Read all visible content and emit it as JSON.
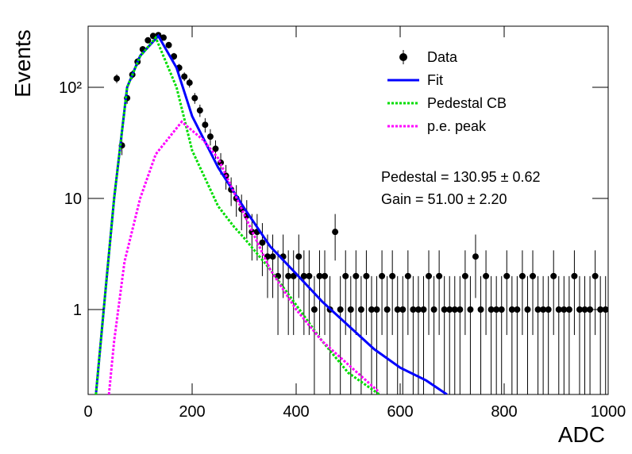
{
  "chart_data": {
    "type": "histfit",
    "xlabel": "ADC",
    "ylabel": "Events",
    "xlim": [
      0,
      1000
    ],
    "xticks": [
      0,
      200,
      400,
      600,
      800,
      1000
    ],
    "ylim": [
      0.172,
      355
    ],
    "ylog": true,
    "yticks": [
      1,
      10,
      {
        "value": 100,
        "label": "10²"
      }
    ],
    "legend": "top-right",
    "annotations": [
      "Pedestal = 130.95 ± 0.62",
      "Gain = 51.00 ± 2.20"
    ],
    "series": [
      {
        "name": "Data",
        "style": "markers",
        "color": "#000000",
        "x": [
          55,
          65,
          75,
          85,
          95,
          105,
          115,
          125,
          135,
          145,
          155,
          165,
          175,
          185,
          195,
          205,
          215,
          225,
          235,
          245,
          255,
          265,
          275,
          285,
          295,
          305,
          315,
          325,
          335,
          345,
          355,
          365,
          375,
          385,
          395,
          405,
          415,
          425,
          435,
          445,
          455,
          465,
          475,
          485,
          495,
          505,
          515,
          525,
          535,
          545,
          555,
          565,
          575,
          585,
          595,
          605,
          615,
          625,
          635,
          645,
          655,
          665,
          675,
          685,
          695,
          705,
          715,
          725,
          735,
          745,
          755,
          765,
          775,
          785,
          795,
          805,
          815,
          825,
          835,
          845,
          855,
          865,
          875,
          885,
          895,
          905,
          915,
          925,
          935,
          945,
          955,
          965,
          975,
          985,
          995
        ],
        "values": [
          120,
          30,
          80,
          130,
          170,
          220,
          265,
          290,
          295,
          280,
          240,
          190,
          150,
          125,
          110,
          80,
          62,
          46,
          36,
          28,
          21,
          16,
          12,
          10,
          8,
          7,
          5,
          5,
          4,
          3,
          3,
          2,
          3,
          2,
          2,
          3,
          2,
          2,
          1,
          2,
          2,
          1,
          5,
          1,
          2,
          1,
          2,
          1,
          2,
          1,
          1,
          2,
          1,
          2,
          1,
          1,
          2,
          1,
          1,
          1,
          2,
          1,
          2,
          1,
          1,
          1,
          1,
          2,
          1,
          3,
          1,
          2,
          1,
          1,
          1,
          2,
          1,
          1,
          2,
          1,
          2,
          1,
          1,
          1,
          2,
          1,
          1,
          1,
          2,
          1,
          1,
          1,
          2,
          1,
          1
        ],
        "errors": [
          10.95,
          5.48,
          8.94,
          11.4,
          13.04,
          14.83,
          16.28,
          17.03,
          17.18,
          16.73,
          15.49,
          13.78,
          12.25,
          11.18,
          10.49,
          8.94,
          7.87,
          6.78,
          6,
          5.29,
          4.58,
          4,
          3.46,
          3.16,
          2.83,
          2.65,
          2.24,
          2.24,
          2,
          1.73,
          1.73,
          1.41,
          1.73,
          1.41,
          1.41,
          1.73,
          1.41,
          1.41,
          1,
          1.41,
          1.41,
          1,
          2.24,
          1,
          1.41,
          1,
          1.41,
          1,
          1.41,
          1,
          1,
          1.41,
          1,
          1.41,
          1,
          1,
          1.41,
          1,
          1,
          1,
          1.41,
          1,
          1.41,
          1,
          1,
          1,
          1,
          1.41,
          1,
          1.73,
          1,
          1.41,
          1,
          1,
          1,
          1.41,
          1,
          1,
          1.41,
          1,
          1.41,
          1,
          1,
          1,
          1.41,
          1,
          1,
          1,
          1.41,
          1,
          1,
          1,
          1.41,
          1,
          1
        ]
      },
      {
        "name": "Fit",
        "style": "solid",
        "color": "#0000ff",
        "x": [
          15,
          30,
          50,
          75,
          100,
          135,
          170,
          200,
          250,
          300,
          350,
          400,
          450,
          500,
          550,
          600,
          650,
          690
        ],
        "values": [
          0.172,
          1,
          10,
          100,
          192,
          290,
          150,
          55,
          19,
          8.2,
          3.7,
          2.1,
          1.18,
          0.72,
          0.44,
          0.3,
          0.23,
          0.172
        ]
      },
      {
        "name": "Pedestal CB",
        "style": "dotted",
        "color": "#00dd00",
        "x": [
          15,
          30,
          50,
          75,
          100,
          130,
          170,
          200,
          250,
          280,
          300,
          350,
          400,
          450,
          500,
          560
        ],
        "values": [
          0.172,
          1,
          10,
          100,
          190,
          280,
          100,
          27,
          8.5,
          5.6,
          4.4,
          2.3,
          1.1,
          0.52,
          0.27,
          0.172
        ]
      },
      {
        "name": "p.e. peak",
        "style": "dotted",
        "color": "#ff00ff",
        "x": [
          40,
          50,
          70,
          100,
          130,
          180,
          220,
          250,
          300,
          350,
          400,
          450,
          500,
          560
        ],
        "values": [
          0.172,
          0.52,
          2.7,
          10,
          25,
          49,
          34,
          23,
          7.2,
          2.3,
          1,
          0.52,
          0.32,
          0.18
        ]
      }
    ]
  }
}
